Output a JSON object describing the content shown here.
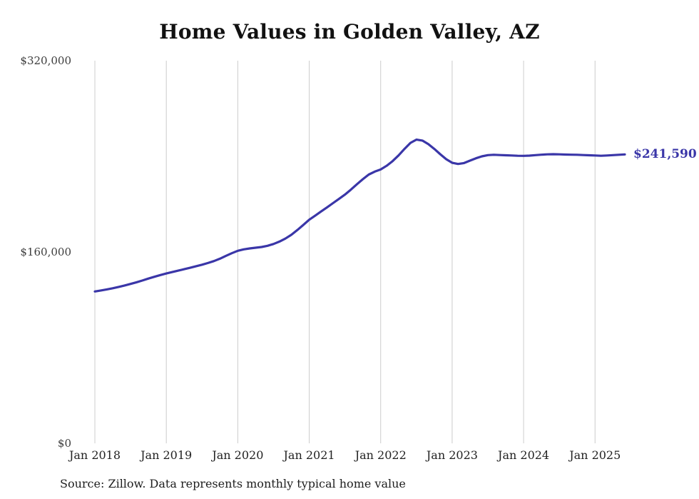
{
  "title": "Home Values in Golden Valley, AZ",
  "source_note": "Source: Zillow. Data represents monthly typical home value",
  "end_label": "$241,590",
  "colors": {
    "line": "#3a36a8",
    "end_label": "#3a36a8",
    "gridline": "#cccccc",
    "axis_text": "#333333",
    "title_text": "#111111"
  },
  "chart_data": {
    "type": "line",
    "title": "Home Values in Golden Valley, AZ",
    "xlabel": "",
    "ylabel": "",
    "x_start": "2018-01",
    "x_end": "2025-06",
    "months_per_point": 1,
    "x_tick_labels": [
      "Jan 2018",
      "Jan 2019",
      "Jan 2020",
      "Jan 2021",
      "Jan 2022",
      "Jan 2023",
      "Jan 2024",
      "Jan 2025"
    ],
    "x_tick_month_indices": [
      0,
      12,
      24,
      36,
      48,
      60,
      72,
      84
    ],
    "y_ticks": [
      0,
      160000,
      320000
    ],
    "y_tick_labels": [
      "$0",
      "$160,000",
      "$320,000"
    ],
    "ylim": [
      0,
      320000
    ],
    "grid": "vertical-only",
    "legend": "none",
    "final_value": 241590,
    "series": [
      {
        "name": "Typical home value",
        "values": [
          127000,
          127800,
          128700,
          129700,
          130800,
          132000,
          133300,
          134700,
          136200,
          137800,
          139300,
          140700,
          142000,
          143200,
          144400,
          145600,
          146800,
          148100,
          149400,
          150800,
          152400,
          154400,
          156800,
          159000,
          161000,
          162200,
          163000,
          163600,
          164200,
          165200,
          166700,
          168700,
          171200,
          174400,
          178300,
          182600,
          187000,
          190400,
          193900,
          197400,
          200900,
          204400,
          208000,
          212200,
          216600,
          220900,
          224800,
          227200,
          229000,
          232100,
          236000,
          240800,
          246200,
          251300,
          254000,
          253200,
          250200,
          246200,
          241800,
          237600,
          234600,
          233600,
          234400,
          236400,
          238400,
          240000,
          241000,
          241300,
          241100,
          240900,
          240700,
          240500,
          240400,
          240600,
          241000,
          241400,
          241700,
          241800,
          241700,
          241500,
          241400,
          241300,
          241100,
          240900,
          240700,
          240500,
          240700,
          241000,
          241300,
          241590
        ]
      }
    ]
  }
}
